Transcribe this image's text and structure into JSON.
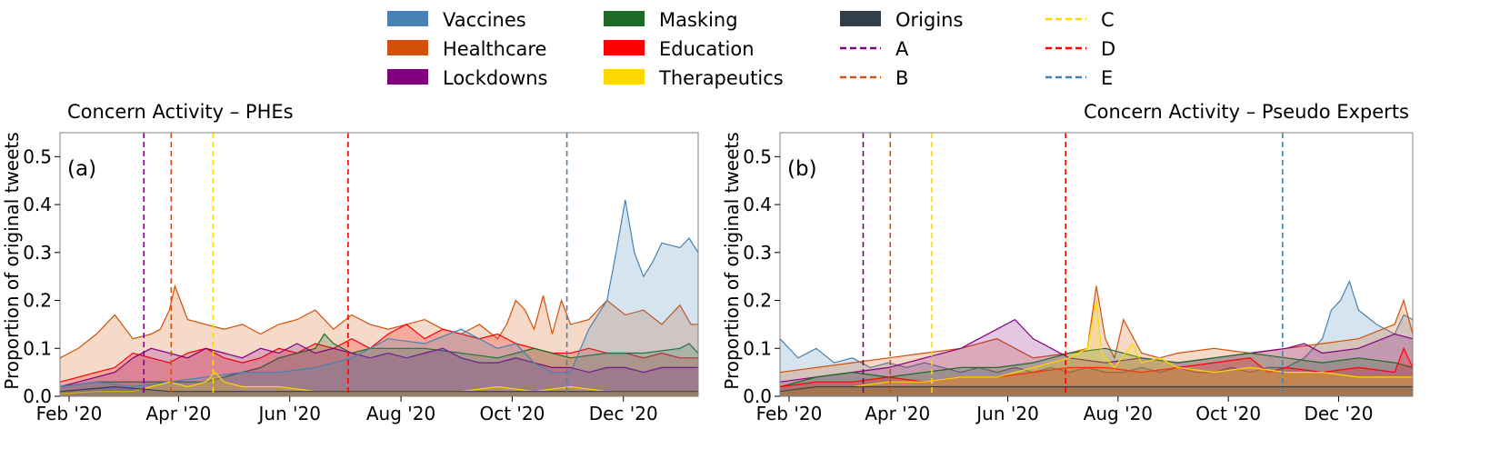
{
  "legend": {
    "items": [
      {
        "label": "Vaccines",
        "kind": "patch",
        "color": "#4682b4"
      },
      {
        "label": "Healthcare",
        "kind": "patch",
        "color": "#d2500a"
      },
      {
        "label": "Lockdowns",
        "kind": "patch",
        "color": "#800080"
      },
      {
        "label": "Masking",
        "kind": "patch",
        "color": "#1e6b26"
      },
      {
        "label": "Education",
        "kind": "patch",
        "color": "#ff0000"
      },
      {
        "label": "Therapeutics",
        "kind": "patch",
        "color": "#ffd700"
      },
      {
        "label": "Origins",
        "kind": "patch",
        "color": "#333f48"
      },
      {
        "label": "A",
        "kind": "line",
        "color": "#800080"
      },
      {
        "label": "B",
        "kind": "line",
        "color": "#d2500a"
      },
      {
        "label": "C",
        "kind": "line",
        "color": "#ffd700"
      },
      {
        "label": "D",
        "kind": "line",
        "color": "#ff0000"
      },
      {
        "label": "E",
        "kind": "line",
        "color": "#4682b4"
      }
    ]
  },
  "chart_data": [
    {
      "type": "area",
      "title": "Concern Activity – PHEs",
      "title_align": "left",
      "panel_label": "(a)",
      "ylabel": "Proportion of original tweets",
      "xlabel": "",
      "xlim": [
        0,
        350
      ],
      "ylim": [
        0,
        0.55
      ],
      "yticks": [
        0.0,
        0.1,
        0.2,
        0.3,
        0.4,
        0.5
      ],
      "ytick_labels": [
        "0.0",
        "0.1",
        "0.2",
        "0.3",
        "0.4",
        "0.5"
      ],
      "xtick_positions": [
        5,
        65,
        126,
        187,
        248,
        309
      ],
      "xtick_labels": [
        "Feb '20",
        "Apr '20",
        "Jun '20",
        "Aug '20",
        "Oct '20",
        "Dec '20"
      ],
      "vlines": [
        {
          "label": "A",
          "x": 46,
          "color": "#800080"
        },
        {
          "label": "B",
          "x": 61,
          "color": "#d2500a"
        },
        {
          "label": "C",
          "x": 84,
          "color": "#ffd700"
        },
        {
          "label": "D",
          "x": 158,
          "color": "#ff0000"
        },
        {
          "label": "E",
          "x": 278,
          "color": "#4682b4"
        }
      ],
      "series": [
        {
          "name": "Healthcare",
          "color": "#d2500a",
          "x": [
            0,
            10,
            20,
            30,
            40,
            50,
            55,
            60,
            63,
            66,
            70,
            80,
            90,
            100,
            110,
            120,
            130,
            140,
            150,
            160,
            170,
            180,
            190,
            200,
            210,
            220,
            230,
            240,
            245,
            250,
            255,
            260,
            265,
            270,
            275,
            280,
            290,
            300,
            310,
            320,
            330,
            340,
            346,
            350
          ],
          "values": [
            0.08,
            0.1,
            0.13,
            0.17,
            0.12,
            0.13,
            0.14,
            0.18,
            0.23,
            0.2,
            0.16,
            0.15,
            0.14,
            0.15,
            0.13,
            0.15,
            0.16,
            0.18,
            0.14,
            0.17,
            0.15,
            0.14,
            0.15,
            0.16,
            0.14,
            0.13,
            0.15,
            0.12,
            0.15,
            0.2,
            0.18,
            0.14,
            0.21,
            0.13,
            0.2,
            0.15,
            0.16,
            0.2,
            0.17,
            0.18,
            0.15,
            0.19,
            0.15,
            0.15
          ]
        },
        {
          "name": "Education",
          "color": "#ff0000",
          "x": [
            0,
            10,
            20,
            30,
            40,
            50,
            60,
            70,
            80,
            90,
            100,
            110,
            120,
            130,
            140,
            150,
            160,
            170,
            180,
            190,
            200,
            210,
            220,
            230,
            240,
            250,
            260,
            270,
            280,
            290,
            300,
            310,
            320,
            330,
            340,
            350
          ],
          "values": [
            0.03,
            0.04,
            0.05,
            0.06,
            0.09,
            0.08,
            0.07,
            0.09,
            0.1,
            0.08,
            0.07,
            0.08,
            0.1,
            0.09,
            0.11,
            0.1,
            0.12,
            0.1,
            0.13,
            0.15,
            0.12,
            0.14,
            0.13,
            0.12,
            0.13,
            0.11,
            0.1,
            0.09,
            0.09,
            0.1,
            0.09,
            0.09,
            0.08,
            0.09,
            0.08,
            0.08
          ]
        },
        {
          "name": "Masking",
          "color": "#1e6b26",
          "x": [
            0,
            20,
            40,
            60,
            80,
            100,
            110,
            120,
            140,
            145,
            150,
            160,
            170,
            180,
            200,
            220,
            240,
            260,
            270,
            280,
            300,
            320,
            340,
            345,
            350
          ],
          "values": [
            0.02,
            0.03,
            0.03,
            0.03,
            0.03,
            0.05,
            0.06,
            0.08,
            0.1,
            0.13,
            0.11,
            0.09,
            0.1,
            0.1,
            0.1,
            0.09,
            0.08,
            0.1,
            0.09,
            0.08,
            0.09,
            0.09,
            0.1,
            0.11,
            0.09
          ]
        },
        {
          "name": "Lockdowns",
          "color": "#800080",
          "x": [
            0,
            10,
            20,
            30,
            40,
            50,
            60,
            70,
            80,
            90,
            100,
            110,
            120,
            130,
            140,
            150,
            160,
            170,
            180,
            190,
            200,
            210,
            220,
            230,
            240,
            250,
            260,
            270,
            280,
            290,
            300,
            310,
            320,
            330,
            340,
            350
          ],
          "values": [
            0.02,
            0.03,
            0.04,
            0.05,
            0.08,
            0.1,
            0.09,
            0.08,
            0.1,
            0.09,
            0.08,
            0.1,
            0.09,
            0.11,
            0.09,
            0.1,
            0.09,
            0.08,
            0.09,
            0.08,
            0.09,
            0.1,
            0.08,
            0.07,
            0.07,
            0.08,
            0.07,
            0.06,
            0.06,
            0.05,
            0.06,
            0.06,
            0.05,
            0.06,
            0.06,
            0.06
          ]
        },
        {
          "name": "Vaccines",
          "color": "#4682b4",
          "x": [
            0,
            20,
            40,
            60,
            80,
            100,
            120,
            140,
            160,
            170,
            180,
            200,
            220,
            240,
            250,
            260,
            270,
            280,
            290,
            300,
            305,
            310,
            315,
            320,
            325,
            330,
            340,
            345,
            350
          ],
          "values": [
            0.02,
            0.03,
            0.02,
            0.03,
            0.04,
            0.05,
            0.05,
            0.06,
            0.08,
            0.1,
            0.12,
            0.11,
            0.14,
            0.1,
            0.11,
            0.07,
            0.05,
            0.05,
            0.14,
            0.2,
            0.3,
            0.41,
            0.3,
            0.25,
            0.28,
            0.32,
            0.31,
            0.33,
            0.3
          ]
        },
        {
          "name": "Therapeutics",
          "color": "#ffd700",
          "x": [
            0,
            20,
            40,
            50,
            60,
            70,
            80,
            85,
            90,
            100,
            120,
            140,
            160,
            180,
            200,
            220,
            240,
            260,
            280,
            300,
            320,
            340,
            350
          ],
          "values": [
            0.005,
            0.01,
            0.01,
            0.02,
            0.03,
            0.02,
            0.03,
            0.05,
            0.03,
            0.02,
            0.02,
            0.01,
            0.01,
            0.01,
            0.01,
            0.01,
            0.02,
            0.01,
            0.02,
            0.01,
            0.01,
            0.01,
            0.01
          ]
        },
        {
          "name": "Origins",
          "color": "#333f48",
          "x": [
            0,
            30,
            60,
            90,
            120,
            150,
            180,
            210,
            240,
            270,
            300,
            330,
            350
          ],
          "values": [
            0.01,
            0.02,
            0.01,
            0.01,
            0.01,
            0.01,
            0.01,
            0.01,
            0.01,
            0.01,
            0.01,
            0.01,
            0.01
          ]
        }
      ]
    },
    {
      "type": "area",
      "title": "Concern Activity – Pseudo Experts",
      "title_align": "right",
      "panel_label": "(b)",
      "ylabel": "Proportion of original tweets",
      "xlabel": "",
      "xlim": [
        0,
        350
      ],
      "ylim": [
        0,
        0.55
      ],
      "yticks": [
        0.0,
        0.1,
        0.2,
        0.3,
        0.4,
        0.5
      ],
      "ytick_labels": [
        "0.0",
        "0.1",
        "0.2",
        "0.3",
        "0.4",
        "0.5"
      ],
      "xtick_positions": [
        5,
        65,
        126,
        187,
        248,
        309
      ],
      "xtick_labels": [
        "Feb '20",
        "Apr '20",
        "Jun '20",
        "Aug '20",
        "Oct '20",
        "Dec '20"
      ],
      "vlines": [
        {
          "label": "A",
          "x": 46,
          "color": "#800080"
        },
        {
          "label": "B",
          "x": 61,
          "color": "#d2500a"
        },
        {
          "label": "C",
          "x": 84,
          "color": "#ffd700"
        },
        {
          "label": "D",
          "x": 158,
          "color": "#ff0000"
        },
        {
          "label": "E",
          "x": 278,
          "color": "#4682b4"
        }
      ],
      "series": [
        {
          "name": "Vaccines",
          "color": "#4682b4",
          "x": [
            0,
            10,
            20,
            30,
            40,
            50,
            60,
            70,
            80,
            90,
            100,
            110,
            120,
            130,
            140,
            150,
            160,
            170,
            180,
            190,
            200,
            210,
            220,
            230,
            240,
            250,
            260,
            270,
            280,
            290,
            300,
            305,
            310,
            315,
            320,
            330,
            340,
            345,
            350
          ],
          "values": [
            0.12,
            0.08,
            0.1,
            0.07,
            0.08,
            0.06,
            0.07,
            0.06,
            0.07,
            0.06,
            0.05,
            0.06,
            0.05,
            0.06,
            0.05,
            0.06,
            0.05,
            0.06,
            0.05,
            0.05,
            0.06,
            0.05,
            0.06,
            0.05,
            0.05,
            0.06,
            0.05,
            0.06,
            0.06,
            0.08,
            0.12,
            0.18,
            0.2,
            0.24,
            0.18,
            0.15,
            0.13,
            0.17,
            0.16
          ]
        },
        {
          "name": "Healthcare",
          "color": "#d2500a",
          "x": [
            0,
            20,
            40,
            60,
            80,
            100,
            120,
            140,
            160,
            170,
            175,
            180,
            185,
            190,
            200,
            210,
            220,
            240,
            260,
            280,
            300,
            320,
            340,
            345,
            350
          ],
          "values": [
            0.05,
            0.06,
            0.07,
            0.08,
            0.09,
            0.1,
            0.12,
            0.08,
            0.09,
            0.1,
            0.23,
            0.12,
            0.08,
            0.16,
            0.09,
            0.08,
            0.09,
            0.1,
            0.09,
            0.1,
            0.11,
            0.12,
            0.15,
            0.2,
            0.13
          ]
        },
        {
          "name": "Lockdowns",
          "color": "#800080",
          "x": [
            0,
            20,
            40,
            60,
            80,
            100,
            110,
            120,
            130,
            140,
            160,
            180,
            200,
            220,
            240,
            260,
            280,
            290,
            300,
            320,
            340,
            350
          ],
          "values": [
            0.03,
            0.04,
            0.05,
            0.06,
            0.08,
            0.1,
            0.12,
            0.14,
            0.16,
            0.12,
            0.08,
            0.07,
            0.08,
            0.07,
            0.08,
            0.09,
            0.1,
            0.11,
            0.09,
            0.1,
            0.13,
            0.12
          ]
        },
        {
          "name": "Masking",
          "color": "#1e6b26",
          "x": [
            0,
            20,
            40,
            60,
            80,
            100,
            120,
            140,
            160,
            180,
            200,
            220,
            240,
            260,
            280,
            300,
            320,
            340,
            350
          ],
          "values": [
            0.02,
            0.04,
            0.05,
            0.04,
            0.05,
            0.06,
            0.06,
            0.07,
            0.09,
            0.1,
            0.08,
            0.07,
            0.08,
            0.09,
            0.08,
            0.07,
            0.08,
            0.07,
            0.06
          ]
        },
        {
          "name": "Education",
          "color": "#ff0000",
          "x": [
            0,
            20,
            40,
            60,
            80,
            100,
            120,
            140,
            160,
            180,
            200,
            220,
            240,
            260,
            270,
            280,
            300,
            320,
            340,
            345,
            350
          ],
          "values": [
            0.02,
            0.03,
            0.03,
            0.04,
            0.03,
            0.04,
            0.04,
            0.05,
            0.06,
            0.06,
            0.05,
            0.06,
            0.07,
            0.08,
            0.05,
            0.06,
            0.05,
            0.06,
            0.05,
            0.1,
            0.06
          ]
        },
        {
          "name": "Therapeutics",
          "color": "#ffd700",
          "x": [
            0,
            20,
            40,
            60,
            80,
            100,
            120,
            140,
            160,
            170,
            175,
            178,
            185,
            195,
            200,
            210,
            220,
            240,
            260,
            280,
            300,
            320,
            340,
            350
          ],
          "values": [
            0.01,
            0.02,
            0.02,
            0.03,
            0.03,
            0.04,
            0.04,
            0.06,
            0.08,
            0.1,
            0.2,
            0.09,
            0.06,
            0.11,
            0.07,
            0.08,
            0.06,
            0.05,
            0.06,
            0.05,
            0.05,
            0.04,
            0.04,
            0.04
          ]
        },
        {
          "name": "Origins",
          "color": "#333f48",
          "x": [
            0,
            20,
            40,
            60,
            80,
            100,
            120,
            140,
            160,
            180,
            200,
            220,
            240,
            260,
            280,
            300,
            320,
            340,
            350
          ],
          "values": [
            0.01,
            0.02,
            0.02,
            0.02,
            0.02,
            0.02,
            0.02,
            0.02,
            0.02,
            0.02,
            0.02,
            0.02,
            0.02,
            0.02,
            0.02,
            0.02,
            0.02,
            0.02,
            0.02
          ]
        }
      ]
    }
  ]
}
